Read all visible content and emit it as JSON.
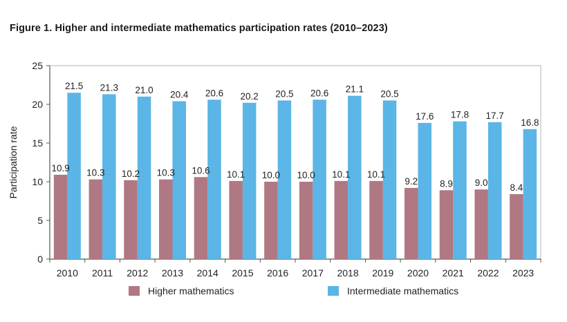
{
  "chart_data": {
    "type": "bar",
    "title": "Figure 1. Higher and intermediate mathematics participation rates (2010–2023)",
    "xlabel": "",
    "ylabel": "Participation rate",
    "ylim": [
      0,
      25
    ],
    "yticks": [
      0,
      5,
      10,
      15,
      20,
      25
    ],
    "grid": false,
    "legend_position": "bottom",
    "categories": [
      "2010",
      "2011",
      "2012",
      "2013",
      "2014",
      "2015",
      "2016",
      "2017",
      "2018",
      "2019",
      "2020",
      "2021",
      "2022",
      "2023"
    ],
    "series": [
      {
        "name": "Higher mathematics",
        "color": "#b07882",
        "values": [
          10.9,
          10.3,
          10.2,
          10.3,
          10.6,
          10.1,
          10.0,
          10.0,
          10.1,
          10.1,
          9.2,
          8.9,
          9.0,
          8.4
        ],
        "labels": [
          "10.9",
          "10.3",
          "10.2",
          "10.3",
          "10.6",
          "10.1",
          "10.0",
          "10.0",
          "10.1",
          "10.1",
          "9.2",
          "8.9",
          "9.0",
          "8.4"
        ]
      },
      {
        "name": "Intermediate mathematics",
        "color": "#5bb5e6",
        "values": [
          21.5,
          21.3,
          21.0,
          20.4,
          20.6,
          20.2,
          20.5,
          20.6,
          21.1,
          20.5,
          17.6,
          17.8,
          17.7,
          16.8
        ],
        "labels": [
          "21.5",
          "21.3",
          "21.0",
          "20.4",
          "20.6",
          "20.2",
          "20.5",
          "20.6",
          "21.1",
          "20.5",
          "17.6",
          "17.8",
          "17.7",
          "16.8"
        ]
      }
    ]
  }
}
